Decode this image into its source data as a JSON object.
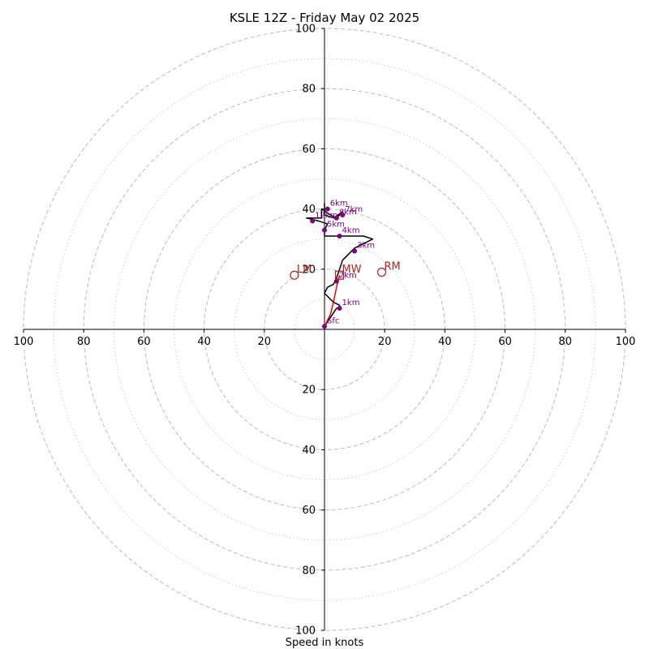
{
  "chart_data": {
    "type": "hodograph",
    "title": "KSLE 12Z - Friday May 02 2025",
    "xlabel": "Speed in knots",
    "ylabel": "",
    "rlim": [
      0,
      100
    ],
    "ring_labels": [
      "20",
      "40",
      "60",
      "80",
      "100"
    ],
    "ring_values": [
      20,
      40,
      60,
      80,
      100
    ],
    "minor_rings": [
      10,
      30,
      50,
      70,
      90
    ],
    "grid": true,
    "series": [
      {
        "color": "#000000",
        "points": [
          [
            0,
            1
          ],
          [
            2,
            4
          ],
          [
            4,
            7
          ],
          [
            5,
            7
          ],
          [
            5,
            8
          ],
          [
            3,
            9
          ],
          [
            2,
            10
          ],
          [
            0,
            12
          ],
          [
            1,
            14
          ],
          [
            3,
            15
          ],
          [
            4,
            17
          ],
          [
            5,
            20
          ],
          [
            6,
            23
          ],
          [
            10,
            27
          ],
          [
            16,
            30
          ],
          [
            13,
            31
          ],
          [
            6,
            31
          ],
          [
            0,
            31
          ],
          [
            0,
            33
          ],
          [
            1,
            35
          ],
          [
            -2,
            36
          ],
          [
            -6,
            37
          ],
          [
            -1,
            37
          ],
          [
            -1,
            40
          ],
          [
            2,
            38
          ],
          [
            4,
            37
          ],
          [
            6,
            39
          ],
          [
            3,
            37
          ],
          [
            0,
            38
          ],
          [
            0,
            42
          ]
        ]
      },
      {
        "color": "#ff0000",
        "points": [
          [
            0,
            1
          ],
          [
            2,
            5
          ],
          [
            3,
            9
          ],
          [
            4,
            14
          ],
          [
            5,
            18
          ]
        ]
      }
    ],
    "height_markers": [
      {
        "label": "Sfc",
        "u": 0,
        "v": 1
      },
      {
        "label": "1km",
        "u": 5,
        "v": 7
      },
      {
        "label": "2km",
        "u": 4,
        "v": 16
      },
      {
        "label": "3km",
        "u": 10,
        "v": 26
      },
      {
        "label": "4km",
        "u": 5,
        "v": 31
      },
      {
        "label": "5km",
        "u": 0,
        "v": 33
      },
      {
        "label": "6km",
        "u": 1,
        "v": 40
      },
      {
        "label": "7km",
        "u": 6,
        "v": 38
      },
      {
        "label": "8km",
        "u": 4,
        "v": 37
      },
      {
        "label": "12km",
        "u": -4,
        "v": 36
      }
    ],
    "storm_motion": [
      {
        "label": "LM",
        "u": -10,
        "v": 18
      },
      {
        "label": "RM",
        "u": 19,
        "v": 19
      },
      {
        "label": "MW",
        "u": 5,
        "v": 18
      }
    ],
    "colors": {
      "hodo_line": "#000000",
      "mean_wind_line": "#ff0000",
      "marker": "#800080",
      "storm_motion": "#b22222",
      "major_grid": "#bbbbbb",
      "minor_grid": "#cccccc"
    }
  }
}
